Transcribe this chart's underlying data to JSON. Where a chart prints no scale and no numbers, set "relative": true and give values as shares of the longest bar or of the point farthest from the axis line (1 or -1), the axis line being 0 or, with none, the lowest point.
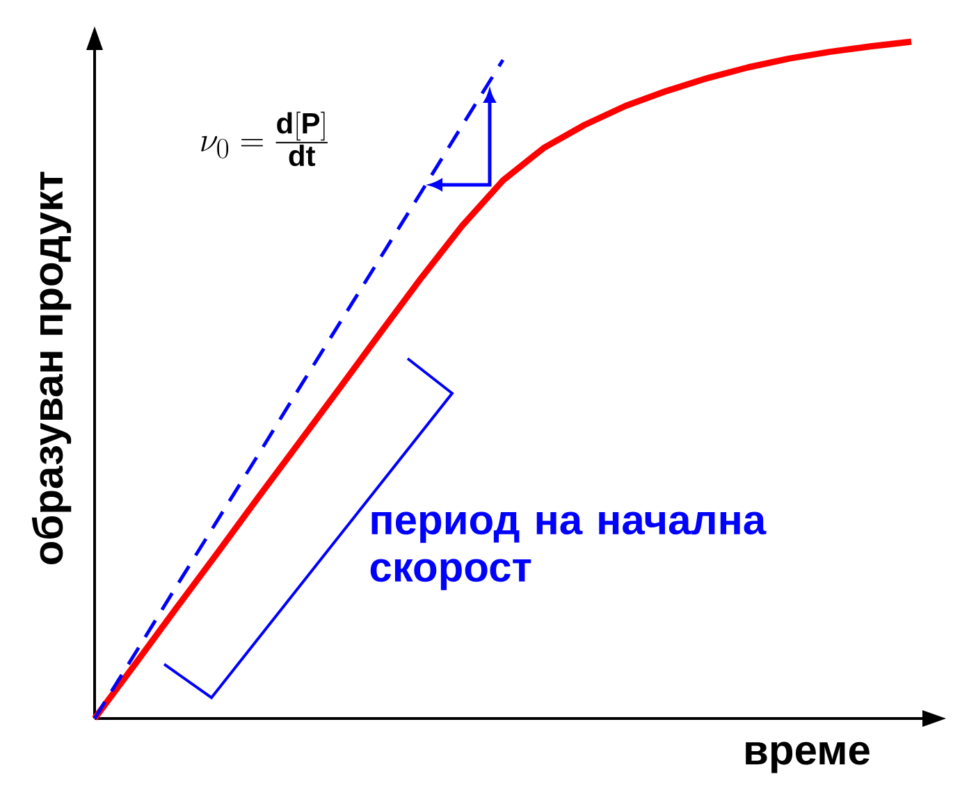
{
  "chart_data": {
    "type": "line",
    "relative": true,
    "marker": "none",
    "xlabel": "време",
    "ylabel": "образуван продукт",
    "annotations": [
      "\\nu_0 = \\frac{\\mathbf{d[P]}}{\\mathbf{dt}}",
      "период на начална скорост"
    ],
    "categories": [
      null,
      null,
      null,
      null,
      null,
      null,
      null,
      null,
      null,
      null,
      null,
      null,
      null,
      null,
      null,
      null,
      null,
      null,
      null,
      null,
      null
    ],
    "series": [
      {
        "color": "#ff0000",
        "line_style": "solid",
        "values": [
          0,
          0.081,
          0.163,
          0.244,
          0.326,
          0.407,
          0.488,
          0.57,
          0.651,
          0.728,
          0.795,
          0.843,
          0.877,
          0.905,
          0.927,
          0.946,
          0.962,
          0.975,
          0.985,
          0.993,
          1
        ]
      },
      {
        "color": "#0000ff",
        "line_style": "dashed",
        "values": [
          0,
          0.097,
          0.195,
          0.292,
          0.389,
          0.487,
          0.584,
          0.681,
          0.778,
          0.876,
          0.973,
          null,
          null,
          null,
          null,
          null,
          null,
          null,
          null,
          null,
          null
        ]
      }
    ]
  }
}
